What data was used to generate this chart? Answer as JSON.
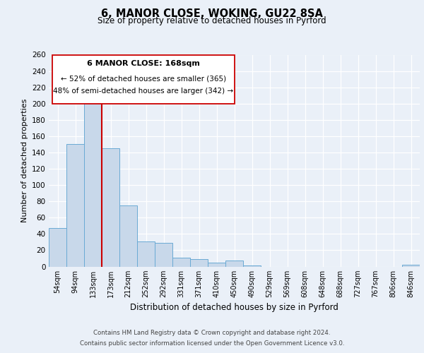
{
  "title": "6, MANOR CLOSE, WOKING, GU22 8SA",
  "subtitle": "Size of property relative to detached houses in Pyrford",
  "xlabel": "Distribution of detached houses by size in Pyrford",
  "ylabel": "Number of detached properties",
  "bar_labels": [
    "54sqm",
    "94sqm",
    "133sqm",
    "173sqm",
    "212sqm",
    "252sqm",
    "292sqm",
    "331sqm",
    "371sqm",
    "410sqm",
    "450sqm",
    "490sqm",
    "529sqm",
    "569sqm",
    "608sqm",
    "648sqm",
    "688sqm",
    "727sqm",
    "767sqm",
    "806sqm",
    "846sqm"
  ],
  "bar_values": [
    47,
    150,
    204,
    145,
    75,
    31,
    29,
    11,
    9,
    5,
    7,
    1,
    0,
    0,
    0,
    0,
    0,
    0,
    0,
    0,
    2
  ],
  "bar_color": "#c8d8ea",
  "bar_edge_color": "#6aaad4",
  "background_color": "#eaf0f8",
  "plot_bg_color": "#eaf0f8",
  "grid_color": "#ffffff",
  "ylim": [
    0,
    260
  ],
  "yticks": [
    0,
    20,
    40,
    60,
    80,
    100,
    120,
    140,
    160,
    180,
    200,
    220,
    240,
    260
  ],
  "vline_color": "#cc0000",
  "annotation_title": "6 MANOR CLOSE: 168sqm",
  "annotation_line1": "← 52% of detached houses are smaller (365)",
  "annotation_line2": "48% of semi-detached houses are larger (342) →",
  "annotation_box_color": "#ffffff",
  "annotation_box_edge": "#cc0000",
  "footer_line1": "Contains HM Land Registry data © Crown copyright and database right 2024.",
  "footer_line2": "Contains public sector information licensed under the Open Government Licence v3.0."
}
